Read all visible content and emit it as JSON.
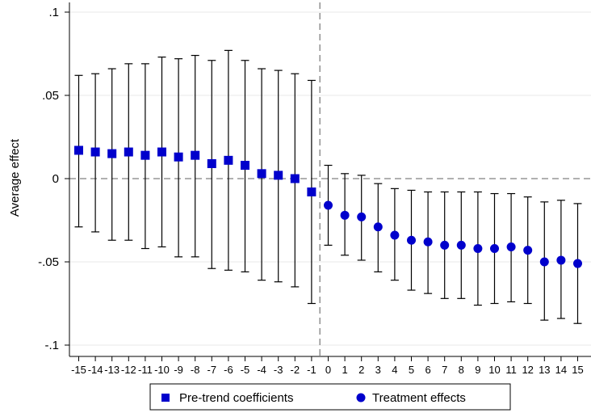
{
  "chart_data": {
    "type": "scatter",
    "title": "",
    "xlabel": "",
    "ylabel": "Average effect",
    "ylim": [
      -0.105,
      0.102
    ],
    "yticks": [
      ".1",
      ".05",
      "0",
      "-.05",
      "-.1"
    ],
    "ytick_values": [
      0.1,
      0.05,
      0,
      -0.05,
      -0.1
    ],
    "grid": true,
    "legend_position": "bottom",
    "reference_lines": [
      {
        "axis": "y",
        "value": 0,
        "style": "dashed"
      },
      {
        "axis": "x",
        "value": "-1|0",
        "style": "dashed"
      }
    ],
    "series": [
      {
        "name": "Pre-trend coefficients",
        "marker": "square",
        "color": "#0000cc",
        "x": [
          "-15",
          "-14",
          "-13",
          "-12",
          "-11",
          "-10",
          "-9",
          "-8",
          "-7",
          "-6",
          "-5",
          "-4",
          "-3",
          "-2",
          "-1"
        ],
        "y": [
          0.017,
          0.016,
          0.015,
          0.016,
          0.014,
          0.016,
          0.013,
          0.014,
          0.009,
          0.011,
          0.008,
          0.003,
          0.002,
          0.0,
          -0.008
        ],
        "ci_low": [
          -0.029,
          -0.032,
          -0.037,
          -0.037,
          -0.042,
          -0.041,
          -0.047,
          -0.047,
          -0.054,
          -0.055,
          -0.056,
          -0.061,
          -0.062,
          -0.065,
          -0.075
        ],
        "ci_high": [
          0.062,
          0.063,
          0.066,
          0.069,
          0.069,
          0.073,
          0.072,
          0.074,
          0.071,
          0.077,
          0.071,
          0.066,
          0.065,
          0.063,
          0.059
        ]
      },
      {
        "name": "Treatment effects",
        "marker": "circle",
        "color": "#0000cc",
        "x": [
          "0",
          "1",
          "2",
          "3",
          "4",
          "5",
          "6",
          "7",
          "8",
          "9",
          "10",
          "11",
          "12",
          "13",
          "14",
          "15"
        ],
        "y": [
          -0.016,
          -0.022,
          -0.023,
          -0.029,
          -0.034,
          -0.037,
          -0.038,
          -0.04,
          -0.04,
          -0.042,
          -0.042,
          -0.041,
          -0.043,
          -0.05,
          -0.049,
          -0.051
        ],
        "ci_low": [
          -0.04,
          -0.046,
          -0.049,
          -0.056,
          -0.061,
          -0.067,
          -0.069,
          -0.072,
          -0.072,
          -0.076,
          -0.075,
          -0.074,
          -0.075,
          -0.085,
          -0.084,
          -0.087
        ],
        "ci_high": [
          0.008,
          0.003,
          0.002,
          -0.003,
          -0.006,
          -0.007,
          -0.008,
          -0.008,
          -0.008,
          -0.008,
          -0.009,
          -0.009,
          -0.011,
          -0.014,
          -0.013,
          -0.015
        ]
      }
    ]
  },
  "colors": {
    "marker": "#0000cc",
    "errorbar": "#000000",
    "grid": "#e8e8e8",
    "reference_line": "#808080"
  }
}
